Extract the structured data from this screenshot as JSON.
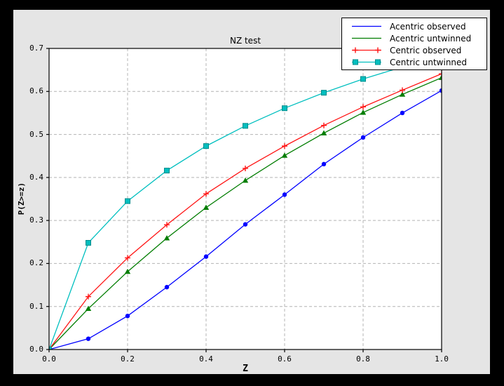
{
  "window": {
    "outer_background": "#000000",
    "figure_background": "#e5e5e5"
  },
  "chart_data": {
    "type": "line",
    "title": "NZ test",
    "xlabel": "Z",
    "ylabel": "P(Z>=z)",
    "xlim": [
      0.0,
      1.0
    ],
    "ylim": [
      0.0,
      0.7
    ],
    "xticks": [
      0.0,
      0.2,
      0.4,
      0.6,
      0.8,
      1.0
    ],
    "xtick_labels": [
      "0.0",
      "0.2",
      "0.4",
      "0.6",
      "0.8",
      "1.0"
    ],
    "yticks": [
      0.0,
      0.1,
      0.2,
      0.3,
      0.4,
      0.5,
      0.6,
      0.7
    ],
    "ytick_labels": [
      "0.0",
      "0.1",
      "0.2",
      "0.3",
      "0.4",
      "0.5",
      "0.6",
      "0.7"
    ],
    "grid": true,
    "grid_color": "#b4b4b4",
    "plot_bg": "#ffffff",
    "frame_color": "#000000",
    "legend_position": "upper right",
    "x": [
      0.0,
      0.1,
      0.2,
      0.3,
      0.4,
      0.5,
      0.6,
      0.7,
      0.8,
      0.9,
      1.0
    ],
    "series": [
      {
        "name": "Acentric observed",
        "color": "#0000ff",
        "marker": "circle",
        "legend_marker": "none",
        "values": [
          0.0,
          0.025,
          0.078,
          0.145,
          0.216,
          0.291,
          0.36,
          0.431,
          0.493,
          0.55,
          0.602
        ]
      },
      {
        "name": "Acentric untwinned",
        "color": "#007d00",
        "marker": "triangle",
        "legend_marker": "none",
        "values": [
          0.0,
          0.095,
          0.181,
          0.259,
          0.33,
          0.393,
          0.451,
          0.503,
          0.551,
          0.593,
          0.632
        ]
      },
      {
        "name": "Centric observed",
        "color": "#ff1414",
        "marker": "plus",
        "legend_marker": "plus",
        "values": [
          0.0,
          0.123,
          0.213,
          0.29,
          0.362,
          0.421,
          0.473,
          0.521,
          0.564,
          0.603,
          0.641
        ]
      },
      {
        "name": "Centric untwinned",
        "color": "#00bfbf",
        "marker": "square",
        "marker_edge": "#008c8c",
        "legend_marker": "square",
        "values": [
          0.0,
          0.248,
          0.345,
          0.416,
          0.473,
          0.52,
          0.561,
          0.597,
          0.629,
          0.657,
          0.683
        ]
      }
    ]
  }
}
